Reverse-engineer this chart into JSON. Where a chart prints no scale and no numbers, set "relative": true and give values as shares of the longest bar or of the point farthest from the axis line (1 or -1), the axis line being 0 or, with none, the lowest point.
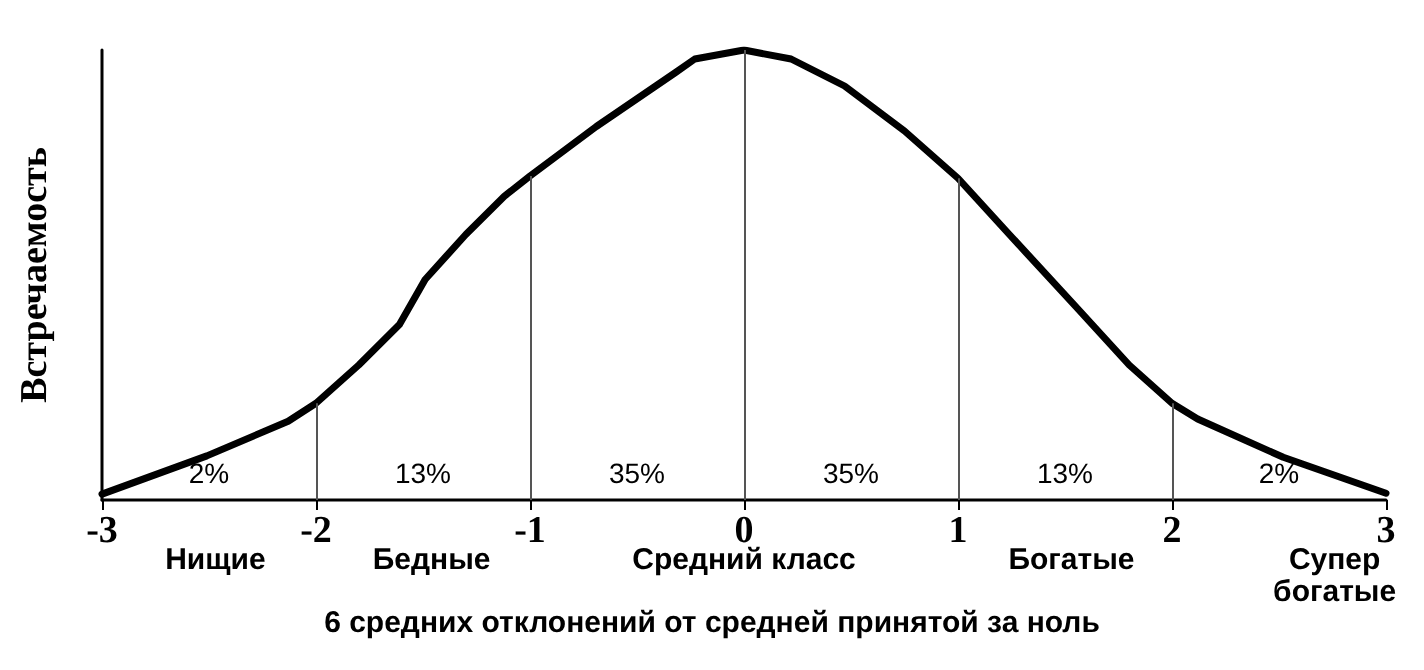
{
  "chart_data": {
    "type": "line",
    "relative": true,
    "xlabel": "6 средних отклонений от средней принятой за ноль",
    "ylabel": "Встречаемость",
    "x": [
      -3,
      -2.51,
      -2.13,
      -2,
      -1.8,
      -1.61,
      -1.49,
      -1.3,
      -1.12,
      -1,
      -0.69,
      -0.32,
      -0.23,
      0,
      0.22,
      0.47,
      0.75,
      1,
      1.24,
      1.55,
      1.8,
      2,
      2.12,
      2.52,
      3
    ],
    "series": [
      {
        "color": "#000000",
        "values": [
          0.013,
          0.098,
          0.175,
          0.215,
          0.3,
          0.39,
          0.49,
          0.59,
          0.675,
          0.72,
          0.83,
          0.95,
          0.98,
          1,
          0.98,
          0.92,
          0.82,
          0.715,
          0.59,
          0.43,
          0.3,
          0.215,
          0.18,
          0.095,
          0.015
        ]
      }
    ],
    "xlim": [
      -3,
      3
    ],
    "xticks": [
      -3,
      -2,
      -1,
      0,
      1,
      2,
      3
    ],
    "ref_lines": [
      {
        "axis": "x",
        "value": -2,
        "color": "#555555"
      },
      {
        "axis": "x",
        "value": -1,
        "color": "#555555"
      },
      {
        "axis": "x",
        "value": 0,
        "color": "#555555"
      },
      {
        "axis": "x",
        "value": 1,
        "color": "#555555"
      },
      {
        "axis": "x",
        "value": 2,
        "color": "#555555"
      }
    ],
    "annotations": [
      "2%",
      "13%",
      "35%",
      "35%",
      "13%",
      "2%",
      "Нищие",
      "Бедные",
      "Средний класс",
      "Богатые",
      "Супер богатые"
    ],
    "grid": false,
    "marker": "none",
    "line_style": "solid"
  }
}
